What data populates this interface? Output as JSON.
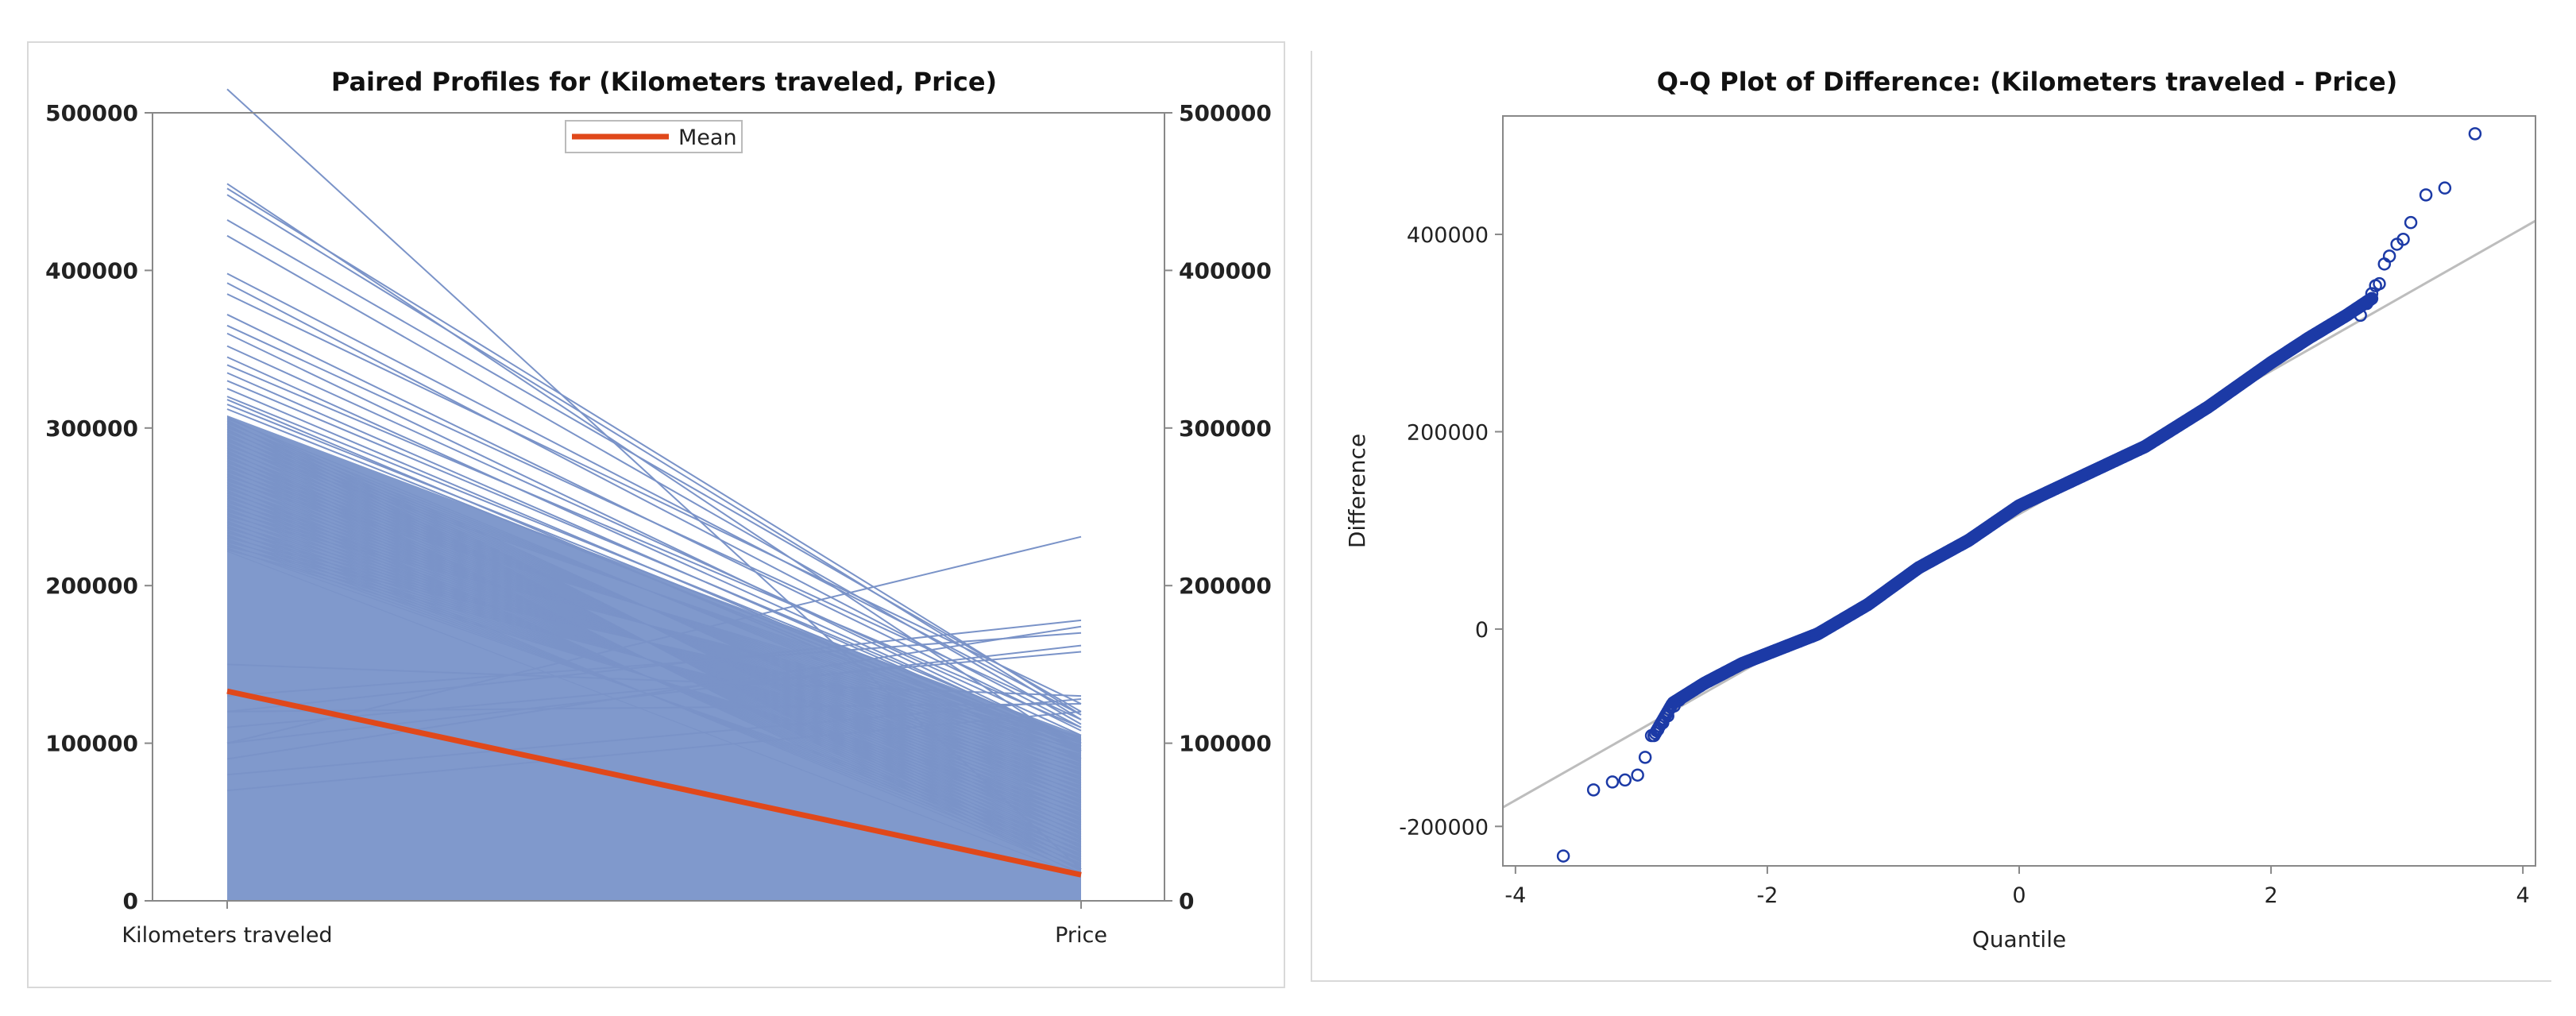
{
  "colors": {
    "profile_fill": "#8099cc",
    "profile_line": "#7a93c8",
    "mean_line": "#e0481a",
    "qq_marker": "#1c3aa6",
    "ref_line": "#bdbdbd",
    "axis": "#888888"
  },
  "chart_data": [
    {
      "type": "line",
      "title": "Paired Profiles for",
      "title_vars": "(Kilometers traveled, Price)",
      "categories": [
        "Kilometers traveled",
        "Price"
      ],
      "ylim": [
        0,
        500000
      ],
      "yticks": [
        0,
        100000,
        200000,
        300000,
        400000,
        500000
      ],
      "ytick_labels": [
        "0",
        "100000",
        "200000",
        "300000",
        "400000",
        "500000"
      ],
      "legend": {
        "label": "Mean",
        "placement": "top-center"
      },
      "mean": {
        "name": "Mean",
        "values": [
          133000,
          16500
        ]
      },
      "dense_band": {
        "km_max": 308000,
        "price_max": 105000
      },
      "profiles": [
        [
          515000,
          20000
        ],
        [
          455000,
          95000
        ],
        [
          452000,
          118000
        ],
        [
          448000,
          115000
        ],
        [
          432000,
          120000
        ],
        [
          422000,
          112000
        ],
        [
          398000,
          118000
        ],
        [
          392000,
          110000
        ],
        [
          385000,
          125000
        ],
        [
          372000,
          108000
        ],
        [
          365000,
          115000
        ],
        [
          360000,
          100000
        ],
        [
          352000,
          105000
        ],
        [
          345000,
          100000
        ],
        [
          340000,
          110000
        ],
        [
          335000,
          98000
        ],
        [
          330000,
          102000
        ],
        [
          325000,
          95000
        ],
        [
          320000,
          100000
        ],
        [
          318000,
          90000
        ],
        [
          315000,
          98000
        ],
        [
          312000,
          96000
        ],
        [
          100000,
          231000
        ],
        [
          120000,
          178000
        ],
        [
          90000,
          174000
        ],
        [
          130000,
          170000
        ],
        [
          100000,
          162000
        ],
        [
          110000,
          158000
        ],
        [
          80000,
          128000
        ],
        [
          120000,
          125000
        ],
        [
          150000,
          130000
        ],
        [
          70000,
          120000
        ]
      ]
    },
    {
      "type": "scatter",
      "title": "Q-Q Plot of Difference:",
      "title_vars": "(Kilometers traveled - Price)",
      "xlabel": "Quantile",
      "ylabel": "Difference",
      "xlim": [
        -4.1,
        4.1
      ],
      "ylim": [
        -240000,
        520000
      ],
      "xticks": [
        -4,
        -2,
        0,
        2,
        4
      ],
      "xtick_labels": [
        "-4",
        "-2",
        "0",
        "2",
        "4"
      ],
      "yticks": [
        -200000,
        0,
        200000,
        400000
      ],
      "ytick_labels": [
        "-200000",
        "0",
        "200000",
        "400000"
      ],
      "reference_line": {
        "intercept": 116500,
        "slope": 72500
      },
      "curve_knots": [
        [
          -2.9,
          -108000
        ],
        [
          -2.75,
          -75000
        ],
        [
          -2.5,
          -55000
        ],
        [
          -2.2,
          -35000
        ],
        [
          -1.9,
          -20000
        ],
        [
          -1.6,
          -5000
        ],
        [
          -1.2,
          25000
        ],
        [
          -0.8,
          62000
        ],
        [
          -0.4,
          90000
        ],
        [
          0,
          125000
        ],
        [
          0.5,
          155000
        ],
        [
          1,
          185000
        ],
        [
          1.5,
          225000
        ],
        [
          2,
          270000
        ],
        [
          2.3,
          295000
        ],
        [
          2.6,
          318000
        ],
        [
          2.8,
          335000
        ]
      ],
      "tail_points": [
        [
          -3.62,
          -230000
        ],
        [
          -3.38,
          -163000
        ],
        [
          -3.23,
          -155000
        ],
        [
          -3.13,
          -153000
        ],
        [
          -3.03,
          -148000
        ],
        [
          -2.97,
          -130000
        ],
        [
          -2.92,
          -108000
        ],
        [
          -2.87,
          -102000
        ],
        [
          -2.83,
          -95000
        ],
        [
          -2.79,
          -88000
        ],
        [
          -2.74,
          -78000
        ],
        [
          -2.7,
          -72000
        ],
        [
          2.71,
          318000
        ],
        [
          2.76,
          330000
        ],
        [
          2.8,
          340000
        ],
        [
          2.83,
          348000
        ],
        [
          2.86,
          350000
        ],
        [
          2.9,
          370000
        ],
        [
          2.94,
          378000
        ],
        [
          3.0,
          390000
        ],
        [
          3.05,
          395000
        ],
        [
          3.11,
          412000
        ],
        [
          3.23,
          440000
        ],
        [
          3.38,
          447000
        ],
        [
          3.62,
          502000
        ]
      ]
    }
  ]
}
